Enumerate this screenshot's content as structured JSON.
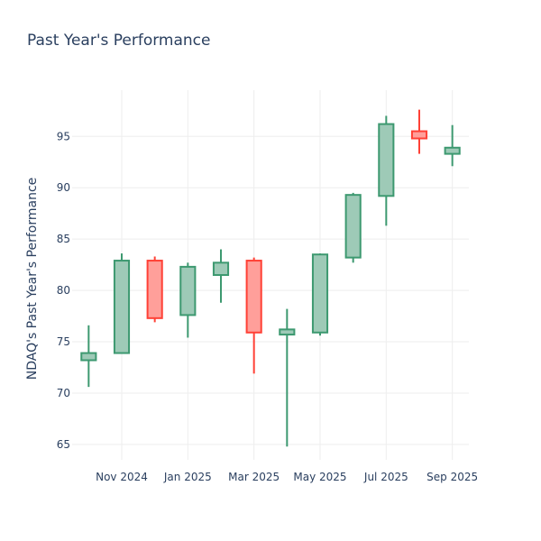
{
  "chart_data": {
    "type": "candlestick",
    "title": "Past Year's Performance",
    "xlabel": "",
    "ylabel": "NDAQ's Past Year's Performance",
    "ylim": [
      63.5,
      99.5
    ],
    "y_ticks": [
      65,
      70,
      75,
      80,
      85,
      90,
      95
    ],
    "grid": true,
    "x_ticks": [
      {
        "label": "Nov 2024",
        "pos": 1
      },
      {
        "label": "Jan 2025",
        "pos": 3
      },
      {
        "label": "Mar 2025",
        "pos": 5
      },
      {
        "label": "May 2025",
        "pos": 7
      },
      {
        "label": "Jul 2025",
        "pos": 9
      },
      {
        "label": "Sep 2025",
        "pos": 11
      }
    ],
    "increasing_color": "#3d9970",
    "increasing_fill": "#9ecab7",
    "decreasing_color": "#ff4136",
    "decreasing_fill": "#ff9f9a",
    "candles": [
      {
        "period": "Oct 2024",
        "open": 73.2,
        "high": 76.6,
        "low": 70.6,
        "close": 73.9
      },
      {
        "period": "Nov 2024",
        "open": 73.9,
        "high": 83.6,
        "low": 73.9,
        "close": 82.9
      },
      {
        "period": "Dec 2024",
        "open": 82.9,
        "high": 83.3,
        "low": 76.9,
        "close": 77.3
      },
      {
        "period": "Jan 2025",
        "open": 77.6,
        "high": 82.7,
        "low": 75.4,
        "close": 82.3
      },
      {
        "period": "Feb 2025",
        "open": 81.5,
        "high": 84.0,
        "low": 78.8,
        "close": 82.7
      },
      {
        "period": "Mar 2025",
        "open": 82.9,
        "high": 83.2,
        "low": 71.9,
        "close": 75.9
      },
      {
        "period": "Apr 2025",
        "open": 75.7,
        "high": 78.2,
        "low": 64.8,
        "close": 76.2
      },
      {
        "period": "May 2025",
        "open": 75.9,
        "high": 83.6,
        "low": 75.6,
        "close": 83.5
      },
      {
        "period": "Jun 2025",
        "open": 83.2,
        "high": 89.5,
        "low": 82.7,
        "close": 89.3
      },
      {
        "period": "Jul 2025",
        "open": 89.2,
        "high": 97.0,
        "low": 86.3,
        "close": 96.2
      },
      {
        "period": "Aug 2025",
        "open": 95.5,
        "high": 97.6,
        "low": 93.3,
        "close": 94.8
      },
      {
        "period": "Sep 2025",
        "open": 93.3,
        "high": 96.1,
        "low": 92.1,
        "close": 93.9
      }
    ]
  }
}
